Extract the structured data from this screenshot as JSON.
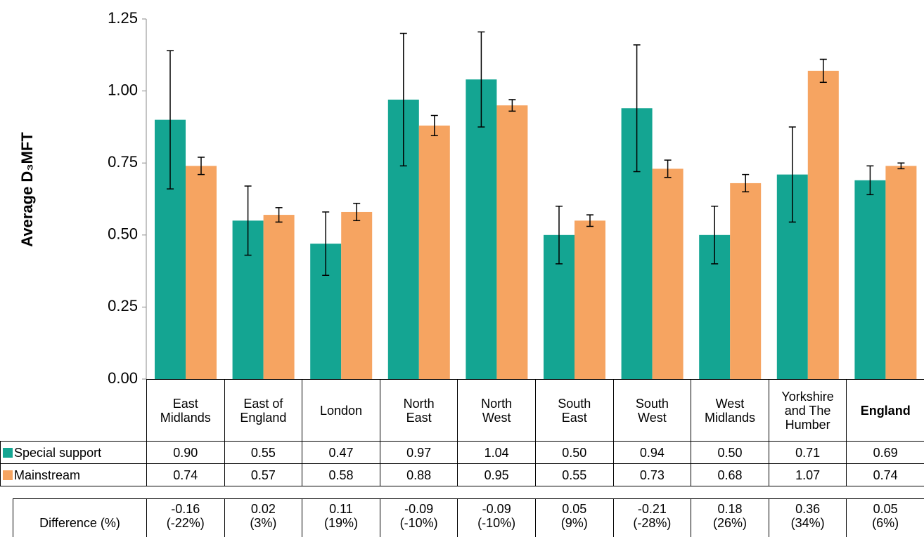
{
  "chart_data": {
    "type": "bar",
    "y_label": "Average D₃MFT",
    "categories": [
      "East\nMidlands",
      "East of\nEngland",
      "London",
      "North\nEast",
      "North\nWest",
      "South\nEast",
      "South\nWest",
      "West\nMidlands",
      "Yorkshire\nand The\nHumber",
      "England"
    ],
    "series": [
      {
        "name": "Special support",
        "color": "#14a592",
        "values": [
          0.9,
          0.55,
          0.47,
          0.97,
          1.04,
          0.5,
          0.94,
          0.5,
          0.71,
          0.69
        ],
        "value_labels": [
          "0.90",
          "0.55",
          "0.47",
          "0.97",
          "1.04",
          "0.50",
          "0.94",
          "0.50",
          "0.71",
          "0.69"
        ],
        "errors": [
          0.24,
          0.12,
          0.11,
          0.23,
          0.165,
          0.1,
          0.22,
          0.1,
          0.165,
          0.05
        ]
      },
      {
        "name": "Mainstream",
        "color": "#f6a461",
        "values": [
          0.74,
          0.57,
          0.58,
          0.88,
          0.95,
          0.55,
          0.73,
          0.68,
          1.07,
          0.74
        ],
        "value_labels": [
          "0.74",
          "0.57",
          "0.58",
          "0.88",
          "0.95",
          "0.55",
          "0.73",
          "0.68",
          "1.07",
          "0.74"
        ],
        "errors": [
          0.03,
          0.025,
          0.03,
          0.035,
          0.02,
          0.02,
          0.03,
          0.03,
          0.04,
          0.01
        ]
      }
    ],
    "difference": {
      "name": "Difference (%)",
      "cells": [
        [
          "-0.16",
          "(-22%)"
        ],
        [
          "0.02",
          "(3%)"
        ],
        [
          "0.11",
          "(19%)"
        ],
        [
          "-0.09",
          "(-10%)"
        ],
        [
          "-0.09",
          "(-10%)"
        ],
        [
          "0.05",
          "(9%)"
        ],
        [
          "-0.21",
          "(-28%)"
        ],
        [
          "0.18",
          "(26%)"
        ],
        [
          "0.36",
          "(34%)"
        ],
        [
          "0.05",
          "(6%)"
        ]
      ]
    },
    "ylim": [
      0,
      1.25
    ],
    "yticks": [
      {
        "value": 0,
        "label": "0.00"
      },
      {
        "value": 0.25,
        "label": "0.25"
      },
      {
        "value": 0.5,
        "label": "0.50"
      },
      {
        "value": 0.75,
        "label": "0.75"
      },
      {
        "value": 1,
        "label": "1.00"
      },
      {
        "value": 1.25,
        "label": "1.25"
      }
    ]
  }
}
